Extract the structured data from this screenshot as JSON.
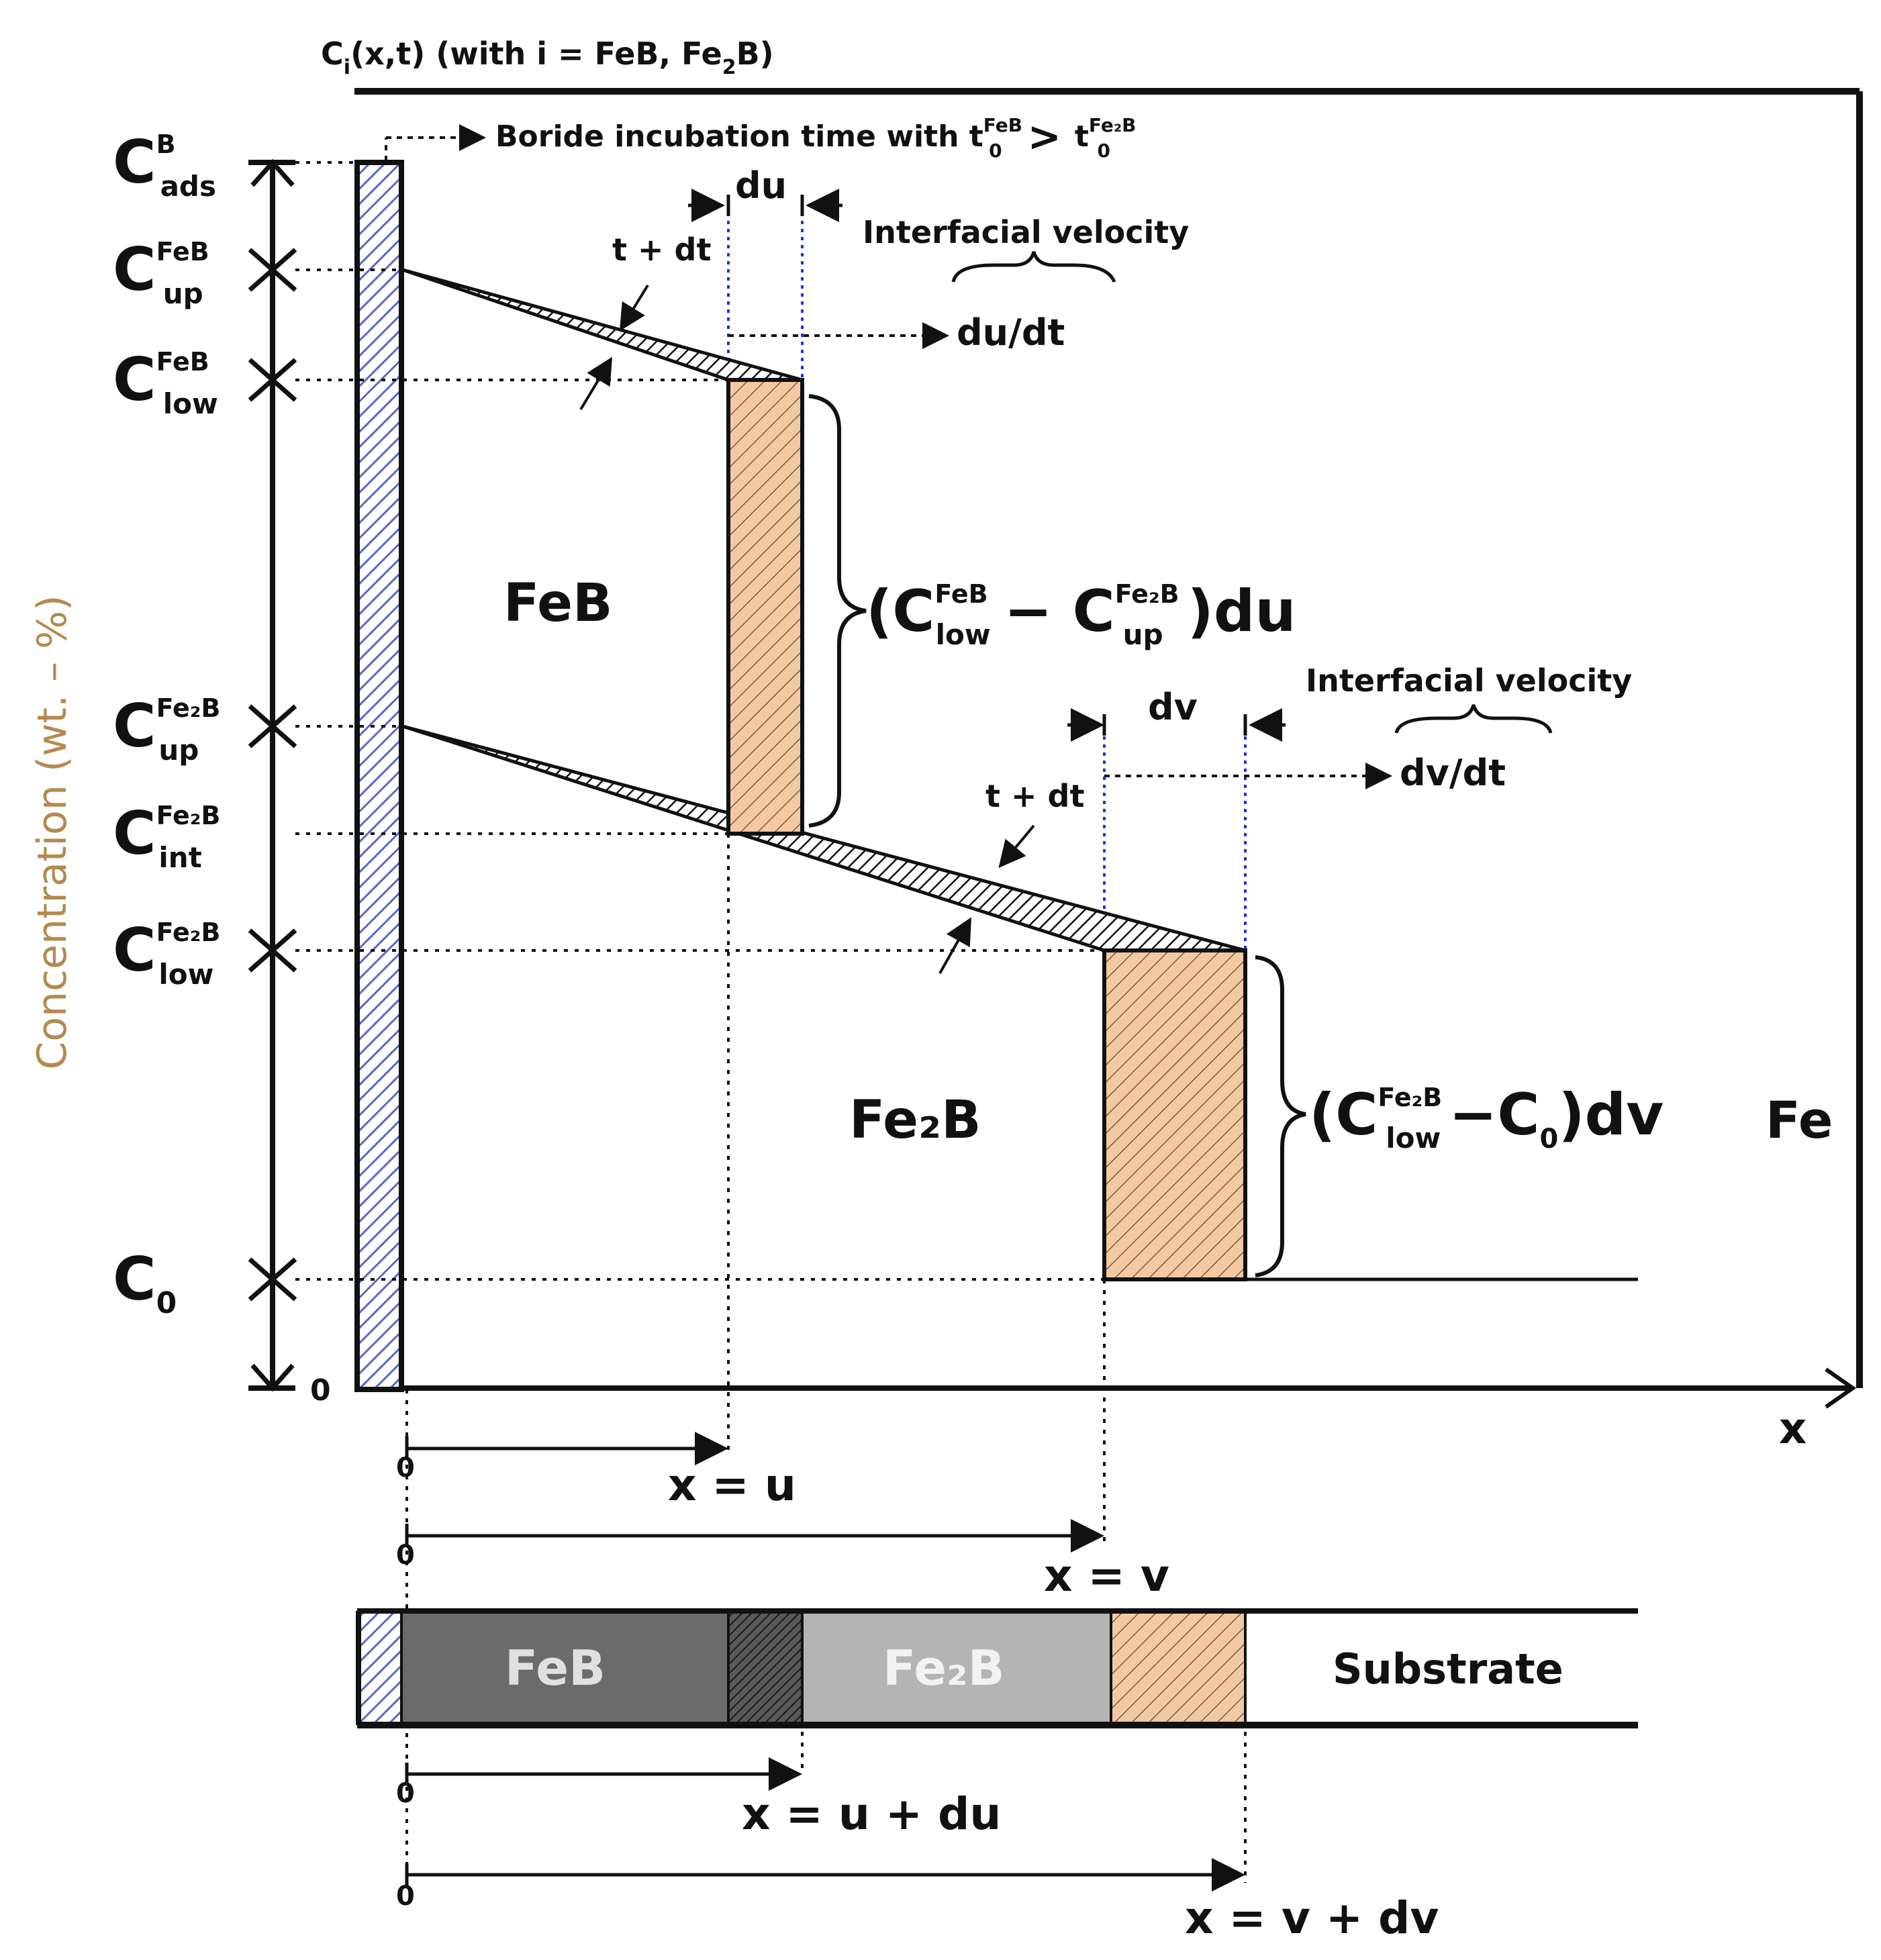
{
  "header": {
    "function_label": "C",
    "function_sub": "i",
    "function_rest": "(x,t) (with i = FeB, Fe",
    "function_fe2": "2",
    "function_tail": "B)"
  },
  "y_axis": {
    "label": "Concentration (wt. – %)",
    "zero": "0"
  },
  "x_axis": {
    "label": "x"
  },
  "levels": [
    {
      "id": "c-ads",
      "main": "C",
      "sup": "B",
      "sub": "ads"
    },
    {
      "id": "c-up-feb",
      "main": "C",
      "sup": "FeB",
      "sub": "up"
    },
    {
      "id": "c-low-feb",
      "main": "C",
      "sup": "FeB",
      "sub": "low"
    },
    {
      "id": "c-up-fe2b",
      "main": "C",
      "sup": "Fe₂B",
      "sub": "up"
    },
    {
      "id": "c-int-fe2b",
      "main": "C",
      "sup": "Fe₂B",
      "sub": "int"
    },
    {
      "id": "c-low-fe2b",
      "main": "C",
      "sup": "Fe₂B",
      "sub": "low"
    },
    {
      "id": "c-0",
      "main": "C",
      "sup": "",
      "sub": "0"
    }
  ],
  "annotations": {
    "incubation": "Boride incubation time with t",
    "incubation_gt": ">",
    "du": "du",
    "dv": "dv",
    "t_dt": "t + dt",
    "interfacial_velocity": "Interfacial velocity",
    "du_dt": "du/dt",
    "dv_dt": "dv/dt",
    "feb_bracket": "(C",
    "feb_bracket_sup1": "FeB",
    "feb_bracket_sub1": "low",
    "feb_bracket_minus": "− C",
    "feb_bracket_sup2": "Fe₂B",
    "feb_bracket_sub2": "up",
    "feb_bracket_tail": ")du",
    "fe2b_bracket": "(C",
    "fe2b_bracket_sup": "Fe₂B",
    "fe2b_bracket_sub": "low",
    "fe2b_bracket_minus": "−C",
    "fe2b_bracket_sub2": "0",
    "fe2b_bracket_tail": ")dv"
  },
  "regions": {
    "feb": "FeB",
    "fe2b": "Fe₂B",
    "fe": "Fe"
  },
  "positions": {
    "zero": "0",
    "x_u": "x = u",
    "x_v": "x = v",
    "x_u_du": "x = u + du",
    "x_v_dv": "x = v + dv"
  },
  "strip": {
    "feb": "FeB",
    "fe2b": "Fe₂B",
    "substrate": "Substrate"
  },
  "colors": {
    "hatch_blue": "#5a67c9",
    "hatch_orange": "#e8b48a",
    "feb_grey": "#6b6b6b",
    "fe2b_grey": "#b4b4b4",
    "label_tan": "#b5894f",
    "guide_blue": "#2233dd"
  }
}
